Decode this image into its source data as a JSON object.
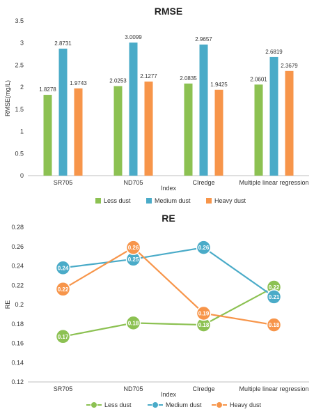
{
  "chart_data": [
    {
      "type": "bar",
      "title": "RMSE",
      "xlabel": "Index",
      "ylabel": "RMSE(mg/L)",
      "ylim": [
        0,
        3.5
      ],
      "yticks": [
        "0",
        "0.5",
        "1",
        "1.5",
        "2",
        "2.5",
        "3",
        "3.5"
      ],
      "categories": [
        "SR705",
        "ND705",
        "CIredge",
        "Multiple linear regression"
      ],
      "series": [
        {
          "name": "Less dust",
          "color": "#8cc152",
          "values": [
            1.8278,
            2.0253,
            2.0835,
            2.0601
          ],
          "labels": [
            "1.8278",
            "2.0253",
            "2.0835",
            "2.0601"
          ]
        },
        {
          "name": "Medium dust",
          "color": "#4aabc8",
          "values": [
            2.8731,
            3.0099,
            2.9657,
            2.6819
          ],
          "labels": [
            "2.8731",
            "3.0099",
            "2.9657",
            "2.6819"
          ]
        },
        {
          "name": "Heavy dust",
          "color": "#f7954a",
          "values": [
            1.9743,
            2.1277,
            1.9425,
            2.3679
          ],
          "labels": [
            "1.9743",
            "2.1277",
            "1.9425",
            "2.3679"
          ]
        }
      ],
      "legend_position": "bottom",
      "grid": false
    },
    {
      "type": "line",
      "title": "RE",
      "xlabel": "Index",
      "ylabel": "RE",
      "ylim": [
        0.12,
        0.28
      ],
      "yticks": [
        "0.12",
        "0.14",
        "0.16",
        "0.18",
        "0.2",
        "0.22",
        "0.24",
        "0.26",
        "0.28"
      ],
      "categories": [
        "SR705",
        "ND705",
        "CIredge",
        "Multiple linear regression"
      ],
      "series": [
        {
          "name": "Less dust",
          "color": "#8cc152",
          "values": [
            0.167,
            0.181,
            0.179,
            0.218
          ],
          "labels": [
            "0.17",
            "0.18",
            "0.18",
            "0.22"
          ]
        },
        {
          "name": "Medium dust",
          "color": "#4aabc8",
          "values": [
            0.238,
            0.247,
            0.259,
            0.208
          ],
          "labels": [
            "0.24",
            "0.25",
            "0.26",
            "0.21"
          ]
        },
        {
          "name": "Heavy dust",
          "color": "#f7954a",
          "values": [
            0.216,
            0.259,
            0.191,
            0.179
          ],
          "labels": [
            "0.22",
            "0.26",
            "0.19",
            "0.18"
          ]
        }
      ],
      "legend_position": "bottom",
      "grid": false
    }
  ]
}
